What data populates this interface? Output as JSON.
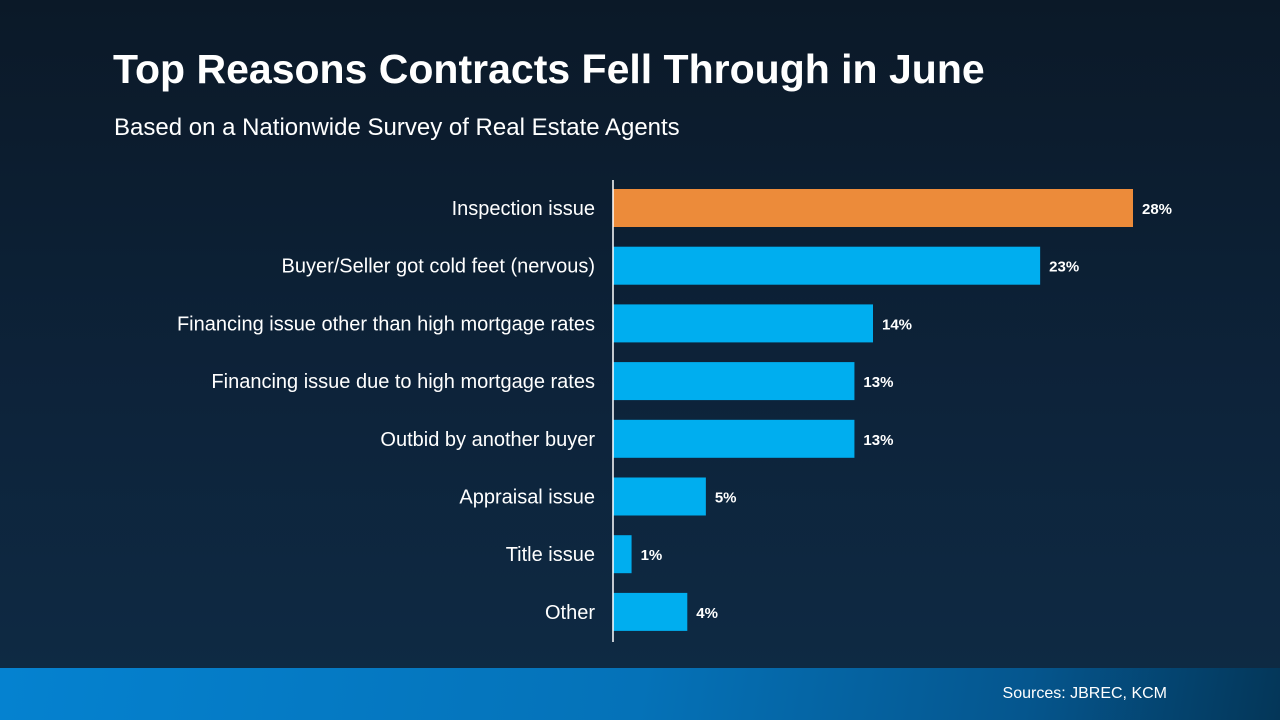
{
  "chart_data": {
    "type": "bar",
    "orientation": "horizontal",
    "title": "Top Reasons Contracts Fell Through in June",
    "subtitle": "Based on a Nationwide Survey of Real Estate Agents",
    "categories": [
      "Inspection issue",
      "Buyer/Seller got cold feet (nervous)",
      "Financing issue other than high mortgage rates",
      "Financing issue due to high mortgage rates",
      "Outbid by another buyer",
      "Appraisal issue",
      "Title issue",
      "Other"
    ],
    "values": [
      28,
      23,
      14,
      13,
      13,
      5,
      1,
      4
    ],
    "value_labels": [
      "28%",
      "23%",
      "14%",
      "13%",
      "13%",
      "5%",
      "1%",
      "4%"
    ],
    "unit": "%",
    "highlight_index": 0,
    "colors": {
      "highlight": "#ec8b3a",
      "default": "#00aeef"
    },
    "grid": false,
    "legend": "none"
  },
  "footer": {
    "source": "Sources: JBREC, KCM"
  }
}
